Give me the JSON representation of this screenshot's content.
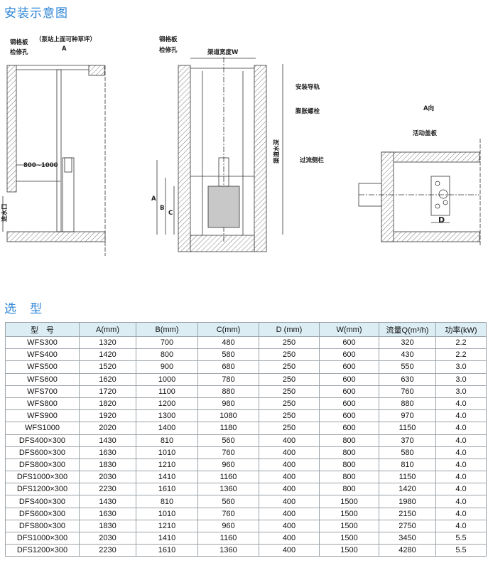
{
  "install_title": "安装示意图",
  "selection_title": "选　型",
  "diagram": {
    "labels": {
      "steel_grate": "钢格板",
      "inspection_hole": "检修孔",
      "lawn_note": "（泵站上面可种草坪）",
      "view_a": "A",
      "distance": "800~1000",
      "inlet": "进水口",
      "steel_grate_2": "钢格板",
      "inspection_hole_2": "检修孔",
      "channel_width": "渠道宽度W",
      "guide_rail": "安装导轨",
      "expansion_bolt": "膨胀螺栓",
      "channel_depth": "渠道水深",
      "screen": "过流侧栏",
      "dim_a": "A",
      "dim_b": "B",
      "dim_c": "C",
      "a_view": "A向",
      "movable_cover": "活动盖板",
      "dim_d": "D"
    }
  },
  "table": {
    "headers": [
      "型　号",
      "A(mm)",
      "B(mm)",
      "C(mm)",
      "D (mm)",
      "W(mm)",
      "流量Q(m³/h)",
      "功率(kW)"
    ],
    "rows": [
      [
        "WFS300",
        "1320",
        "700",
        "480",
        "250",
        "600",
        "320",
        "2.2"
      ],
      [
        "WFS400",
        "1420",
        "800",
        "580",
        "250",
        "600",
        "430",
        "2.2"
      ],
      [
        "WFS500",
        "1520",
        "900",
        "680",
        "250",
        "600",
        "550",
        "3.0"
      ],
      [
        "WFS600",
        "1620",
        "1000",
        "780",
        "250",
        "600",
        "630",
        "3.0"
      ],
      [
        "WFS700",
        "1720",
        "1100",
        "880",
        "250",
        "600",
        "760",
        "3.0"
      ],
      [
        "WFS800",
        "1820",
        "1200",
        "980",
        "250",
        "600",
        "880",
        "4.0"
      ],
      [
        "WFS900",
        "1920",
        "1300",
        "1080",
        "250",
        "600",
        "970",
        "4.0"
      ],
      [
        "WFS1000",
        "2020",
        "1400",
        "1180",
        "250",
        "600",
        "1150",
        "4.0"
      ],
      [
        "DFS400×300",
        "1430",
        "810",
        "560",
        "400",
        "800",
        "370",
        "4.0"
      ],
      [
        "DFS600×300",
        "1630",
        "1010",
        "760",
        "400",
        "800",
        "580",
        "4.0"
      ],
      [
        "DFS800×300",
        "1830",
        "1210",
        "960",
        "400",
        "800",
        "810",
        "4.0"
      ],
      [
        "DFS1000×300",
        "2030",
        "1410",
        "1160",
        "400",
        "800",
        "1150",
        "4.0"
      ],
      [
        "DFS1200×300",
        "2230",
        "1610",
        "1360",
        "400",
        "800",
        "1420",
        "4.0"
      ],
      [
        "DFS400×300",
        "1430",
        "810",
        "560",
        "400",
        "1500",
        "1980",
        "4.0"
      ],
      [
        "DFS600×300",
        "1630",
        "1010",
        "760",
        "400",
        "1500",
        "2150",
        "4.0"
      ],
      [
        "DFS800×300",
        "1830",
        "1210",
        "960",
        "400",
        "1500",
        "2750",
        "4.0"
      ],
      [
        "DFS1000×300",
        "2030",
        "1410",
        "1160",
        "400",
        "1500",
        "3450",
        "5.5"
      ],
      [
        "DFS1200×300",
        "2230",
        "1610",
        "1360",
        "400",
        "1500",
        "4280",
        "5.5"
      ]
    ]
  }
}
